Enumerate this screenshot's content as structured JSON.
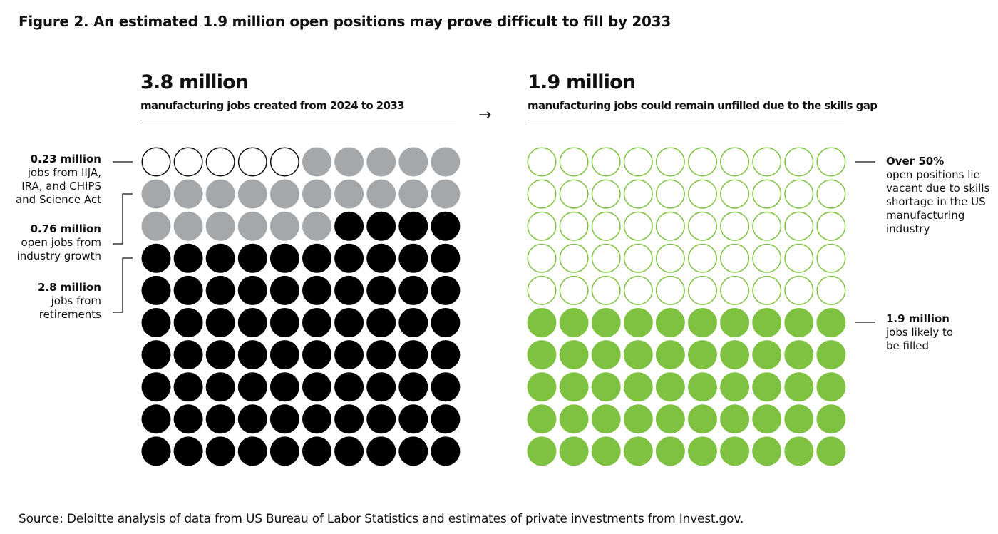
{
  "title": "Figure 2. An estimated 1.9 million open positions may prove difficult to fill by 2033",
  "left_panel": {
    "headline": "3.8 million",
    "subtitle": "manufacturing jobs created from 2024 to 2033",
    "labels": [
      {
        "value": "0.23 million",
        "lines": [
          "jobs from IIJA,",
          "IRA, and CHIPS",
          "and Science Act"
        ]
      },
      {
        "value": "0.76 million",
        "lines": [
          "open jobs from",
          "industry growth"
        ]
      },
      {
        "value": "2.8 million",
        "lines": [
          "jobs from",
          "retirements"
        ]
      }
    ]
  },
  "arrow": "→",
  "right_panel": {
    "headline": "1.9 million",
    "subtitle": "manufacturing jobs could remain unfilled due to the skills gap",
    "labels": [
      {
        "value": "Over 50%",
        "lines": [
          "open positions lie",
          "vacant due to skills",
          "shortage in the US",
          "manufacturing",
          "industry"
        ]
      },
      {
        "value": "1.9 million",
        "lines": [
          "jobs likely to",
          "be filled"
        ]
      }
    ]
  },
  "source": "Source: Deloitte analysis of data from US Bureau of Labor Statistics and estimates of private investments from Invest.gov.",
  "colors": {
    "empty_fill": "#ffffff",
    "empty_stroke": "#111111",
    "gray": "#a5a8aa",
    "black": "#000000",
    "green": "#7fc241",
    "green_outline": "#7fc241"
  },
  "chart_data": [
    {
      "type": "waffle",
      "grid": {
        "rows": 10,
        "cols": 10
      },
      "total": "3.8 million",
      "segments": [
        {
          "label": "0.23 million jobs from IIJA, IRA, and CHIPS and Science Act",
          "value_millions": 0.23,
          "dots": 5,
          "style": "outline"
        },
        {
          "label": "0.76 million open jobs from industry growth",
          "value_millions": 0.76,
          "dots": 21,
          "style": "gray"
        },
        {
          "label": "2.8 million jobs from retirements",
          "value_millions": 2.8,
          "dots": 74,
          "style": "black"
        }
      ]
    },
    {
      "type": "waffle",
      "grid": {
        "rows": 10,
        "cols": 10
      },
      "total": "1.9 million",
      "segments": [
        {
          "label": "Over 50% open positions lie vacant due to skills shortage in the US manufacturing industry",
          "dots": 50,
          "style": "green-outline"
        },
        {
          "label": "1.9 million jobs likely to be filled",
          "value_millions": 1.9,
          "dots": 50,
          "style": "green"
        }
      ]
    }
  ]
}
